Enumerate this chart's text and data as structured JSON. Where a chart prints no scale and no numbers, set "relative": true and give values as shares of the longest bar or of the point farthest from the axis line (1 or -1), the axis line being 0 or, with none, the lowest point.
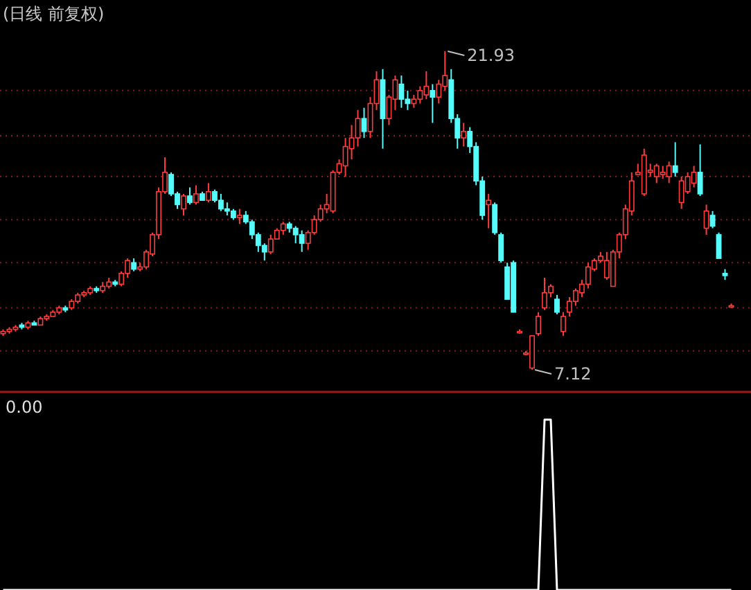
{
  "chart_data": [
    {
      "type": "candlestick",
      "title": "(日线 前复权)",
      "categories": [
        null,
        null,
        null,
        null,
        null,
        null,
        null,
        null,
        null,
        null,
        null,
        null,
        null,
        null,
        null,
        null,
        null,
        null,
        null,
        null,
        null,
        null,
        null,
        null,
        null,
        null,
        null,
        null,
        null,
        null,
        null,
        null,
        null,
        null,
        null,
        null,
        null,
        null,
        null,
        null,
        null,
        null,
        null,
        null,
        null,
        null,
        null,
        null,
        null,
        null,
        null,
        null,
        null,
        null,
        null,
        null,
        null,
        null,
        null,
        null,
        null,
        null,
        null,
        null,
        null,
        null,
        null,
        null,
        null,
        null,
        null,
        null,
        null,
        null,
        null,
        null,
        null,
        null,
        null,
        null,
        null,
        null,
        null,
        null,
        null,
        null,
        null,
        null,
        null,
        null,
        null,
        null,
        null,
        null,
        null,
        null,
        null,
        null,
        null,
        null,
        null,
        null,
        null,
        null,
        null,
        null,
        null,
        null,
        null,
        null,
        null,
        null,
        null,
        null,
        null,
        null,
        null,
        null
      ],
      "ohlc": [
        [
          8.8,
          9.0,
          8.7,
          8.9
        ],
        [
          8.9,
          9.1,
          8.8,
          9.0
        ],
        [
          9.0,
          9.2,
          8.9,
          9.1
        ],
        [
          9.2,
          9.3,
          9.0,
          9.1
        ],
        [
          9.1,
          9.4,
          9.0,
          9.3
        ],
        [
          9.3,
          9.4,
          9.2,
          9.2
        ],
        [
          9.2,
          9.6,
          9.2,
          9.5
        ],
        [
          9.5,
          9.7,
          9.4,
          9.6
        ],
        [
          9.6,
          9.9,
          9.6,
          9.8
        ],
        [
          9.8,
          10.1,
          9.7,
          10.0
        ],
        [
          10.0,
          10.1,
          9.8,
          9.9
        ],
        [
          10.0,
          10.4,
          9.9,
          10.3
        ],
        [
          10.3,
          10.7,
          10.2,
          10.6
        ],
        [
          10.6,
          10.8,
          10.5,
          10.7
        ],
        [
          10.7,
          11.0,
          10.6,
          10.9
        ],
        [
          10.9,
          11.0,
          10.7,
          10.8
        ],
        [
          10.8,
          11.2,
          10.7,
          11.0
        ],
        [
          11.0,
          11.4,
          10.9,
          11.2
        ],
        [
          11.2,
          11.3,
          11.0,
          11.1
        ],
        [
          11.1,
          11.7,
          11.0,
          11.6
        ],
        [
          11.6,
          12.3,
          11.4,
          12.2
        ],
        [
          12.1,
          12.3,
          11.7,
          11.8
        ],
        [
          11.8,
          12.1,
          11.7,
          11.9
        ],
        [
          11.9,
          12.7,
          11.8,
          12.6
        ],
        [
          12.5,
          13.5,
          12.4,
          13.4
        ],
        [
          13.4,
          15.6,
          13.2,
          15.4
        ],
        [
          15.4,
          17.0,
          15.3,
          16.3
        ],
        [
          16.2,
          16.3,
          15.2,
          15.3
        ],
        [
          15.3,
          15.4,
          14.6,
          14.8
        ],
        [
          14.6,
          15.3,
          14.3,
          15.2
        ],
        [
          15.2,
          15.6,
          14.8,
          14.9
        ],
        [
          14.9,
          15.7,
          14.8,
          15.3
        ],
        [
          15.3,
          15.4,
          15.0,
          15.0
        ],
        [
          15.0,
          15.8,
          14.9,
          15.4
        ],
        [
          15.4,
          15.5,
          14.9,
          15.0
        ],
        [
          15.0,
          15.3,
          14.5,
          14.6
        ],
        [
          14.6,
          14.9,
          14.3,
          14.5
        ],
        [
          14.5,
          14.6,
          14.1,
          14.2
        ],
        [
          14.2,
          14.6,
          13.9,
          14.3
        ],
        [
          14.3,
          14.5,
          13.9,
          14.0
        ],
        [
          14.0,
          14.1,
          13.2,
          13.4
        ],
        [
          13.4,
          13.5,
          12.6,
          12.9
        ],
        [
          12.9,
          13.0,
          12.2,
          12.6
        ],
        [
          12.6,
          13.4,
          12.5,
          13.2
        ],
        [
          13.2,
          13.7,
          13.2,
          13.6
        ],
        [
          13.6,
          14.0,
          13.4,
          13.9
        ],
        [
          13.9,
          14.0,
          13.5,
          13.7
        ],
        [
          13.7,
          13.8,
          13.0,
          13.4
        ],
        [
          13.4,
          13.6,
          12.6,
          13.0
        ],
        [
          13.0,
          13.6,
          12.7,
          13.5
        ],
        [
          13.5,
          14.3,
          13.4,
          14.1
        ],
        [
          14.1,
          14.8,
          14.0,
          14.6
        ],
        [
          14.6,
          15.3,
          14.4,
          14.8
        ],
        [
          14.5,
          16.4,
          14.4,
          16.3
        ],
        [
          16.3,
          16.9,
          16.2,
          16.7
        ],
        [
          16.6,
          17.9,
          16.1,
          17.5
        ],
        [
          17.4,
          18.5,
          16.9,
          17.9
        ],
        [
          17.9,
          19.2,
          17.5,
          18.8
        ],
        [
          18.8,
          19.3,
          17.9,
          18.2
        ],
        [
          18.2,
          19.8,
          17.9,
          19.5
        ],
        [
          19.5,
          21.0,
          19.2,
          20.6
        ],
        [
          20.6,
          21.1,
          17.4,
          18.8
        ],
        [
          18.8,
          19.9,
          18.5,
          19.8
        ],
        [
          19.7,
          20.8,
          19.2,
          20.6
        ],
        [
          20.4,
          20.8,
          19.3,
          19.7
        ],
        [
          19.7,
          20.1,
          19.2,
          19.5
        ],
        [
          19.5,
          19.9,
          19.3,
          19.7
        ],
        [
          19.7,
          20.3,
          19.5,
          20.1
        ],
        [
          19.9,
          21.0,
          19.7,
          20.3
        ],
        [
          20.1,
          20.4,
          18.6,
          19.8
        ],
        [
          19.8,
          20.6,
          19.5,
          20.4
        ],
        [
          20.3,
          21.93,
          20.1,
          20.8
        ],
        [
          20.6,
          21.1,
          18.6,
          18.8
        ],
        [
          18.8,
          19.0,
          17.4,
          17.9
        ],
        [
          17.9,
          18.6,
          17.5,
          18.2
        ],
        [
          18.2,
          18.4,
          17.2,
          17.5
        ],
        [
          17.5,
          17.7,
          15.7,
          15.9
        ],
        [
          15.9,
          16.1,
          14.1,
          14.3
        ],
        [
          14.8,
          15.3,
          13.7,
          15.0
        ],
        [
          14.8,
          14.9,
          13.4,
          13.5
        ],
        [
          13.4,
          13.5,
          12.1,
          12.2
        ],
        [
          11.9,
          12.1,
          10.4,
          10.4
        ],
        [
          12.1,
          12.2,
          9.8,
          9.8
        ],
        [
          8.9,
          9.0,
          8.8,
          8.9
        ],
        [
          7.9,
          8.0,
          7.8,
          7.9
        ],
        [
          7.2,
          8.7,
          7.12,
          8.7
        ],
        [
          8.8,
          9.8,
          8.7,
          9.6
        ],
        [
          10.0,
          11.4,
          9.9,
          10.7
        ],
        [
          10.7,
          11.1,
          10.5,
          11.0
        ],
        [
          10.4,
          10.6,
          9.7,
          9.8
        ],
        [
          8.9,
          9.8,
          8.7,
          9.6
        ],
        [
          9.8,
          10.5,
          9.6,
          10.3
        ],
        [
          10.3,
          10.9,
          10.1,
          10.8
        ],
        [
          10.7,
          11.3,
          10.5,
          11.1
        ],
        [
          11.1,
          12.1,
          10.9,
          11.9
        ],
        [
          11.8,
          12.3,
          11.7,
          12.2
        ],
        [
          12.2,
          12.6,
          12.1,
          12.4
        ],
        [
          11.4,
          12.6,
          11.3,
          12.2
        ],
        [
          11.0,
          12.7,
          11.0,
          12.6
        ],
        [
          12.6,
          13.5,
          12.3,
          13.4
        ],
        [
          13.4,
          14.8,
          13.2,
          14.6
        ],
        [
          14.5,
          16.3,
          14.3,
          15.9
        ],
        [
          16.2,
          16.7,
          16.2,
          16.3
        ],
        [
          15.3,
          17.4,
          15.2,
          17.1
        ],
        [
          16.3,
          16.7,
          16.1,
          16.4
        ],
        [
          16.1,
          16.7,
          15.8,
          16.6
        ],
        [
          16.2,
          16.6,
          16.0,
          16.3
        ],
        [
          16.1,
          16.8,
          15.8,
          16.6
        ],
        [
          16.6,
          17.7,
          16.1,
          16.3
        ],
        [
          14.9,
          16.1,
          14.6,
          15.9
        ],
        [
          15.4,
          16.3,
          15.3,
          16.1
        ],
        [
          15.8,
          16.6,
          15.6,
          16.3
        ],
        [
          16.3,
          17.6,
          15.2,
          15.3
        ],
        [
          13.7,
          14.8,
          13.4,
          14.5
        ],
        [
          14.3,
          14.5,
          13.7,
          13.8
        ],
        [
          13.4,
          13.5,
          12.3,
          12.3
        ],
        [
          11.6,
          11.8,
          11.3,
          11.5
        ],
        [
          10.1,
          10.2,
          10.0,
          10.1
        ]
      ],
      "yticks": [
        {
          "value": 8.0,
          "label": null
        },
        {
          "value": 10.0,
          "label": null
        },
        {
          "value": 12.1,
          "label": null
        },
        {
          "value": 14.1,
          "label": null
        },
        {
          "value": 16.1,
          "label": null
        },
        {
          "value": 18.0,
          "label": null
        },
        {
          "value": 20.1,
          "label": null
        }
      ],
      "grid": "y",
      "annotations": [
        "21.93",
        "7.12"
      ]
    },
    {
      "type": "line",
      "relative": true,
      "color": "#ffffff",
      "categories": [
        null,
        null,
        null,
        null,
        null,
        null,
        null,
        null,
        null,
        null,
        null,
        null,
        null,
        null,
        null,
        null,
        null,
        null,
        null,
        null,
        null,
        null,
        null,
        null,
        null,
        null,
        null,
        null,
        null,
        null,
        null,
        null,
        null,
        null,
        null,
        null,
        null,
        null,
        null,
        null,
        null,
        null,
        null,
        null,
        null,
        null,
        null,
        null,
        null,
        null,
        null,
        null,
        null,
        null,
        null,
        null,
        null,
        null,
        null,
        null,
        null,
        null,
        null,
        null,
        null,
        null,
        null,
        null,
        null,
        null,
        null,
        null,
        null,
        null,
        null,
        null,
        null,
        null,
        null,
        null,
        null,
        null,
        null,
        null,
        null,
        null,
        null,
        null,
        null,
        null,
        null,
        null,
        null,
        null,
        null,
        null,
        null,
        null,
        null,
        null,
        null,
        null,
        null,
        null,
        null,
        null,
        null,
        null,
        null,
        null,
        null,
        null,
        null,
        null,
        null,
        null,
        null,
        null
      ],
      "values": [
        0,
        0,
        0,
        0,
        0,
        0,
        0,
        0,
        0,
        0,
        0,
        0,
        0,
        0,
        0,
        0,
        0,
        0,
        0,
        0,
        0,
        0,
        0,
        0,
        0,
        0,
        0,
        0,
        0,
        0,
        0,
        0,
        0,
        0,
        0,
        0,
        0,
        0,
        0,
        0,
        0,
        0,
        0,
        0,
        0,
        0,
        0,
        0,
        0,
        0,
        0,
        0,
        0,
        0,
        0,
        0,
        0,
        0,
        0,
        0,
        0,
        0,
        0,
        0,
        0,
        0,
        0,
        0,
        0,
        0,
        0,
        0,
        0,
        0,
        0,
        0,
        0,
        0,
        0,
        0,
        0,
        0,
        0,
        0,
        0,
        0,
        0,
        1,
        1,
        0,
        0,
        0,
        0,
        0,
        0,
        0,
        0,
        0,
        0,
        0,
        0,
        0,
        0,
        0,
        0,
        0,
        0,
        0,
        0,
        0,
        0,
        0,
        0,
        0,
        0,
        0,
        0,
        0
      ],
      "annotations": [
        "0.00"
      ]
    }
  ]
}
